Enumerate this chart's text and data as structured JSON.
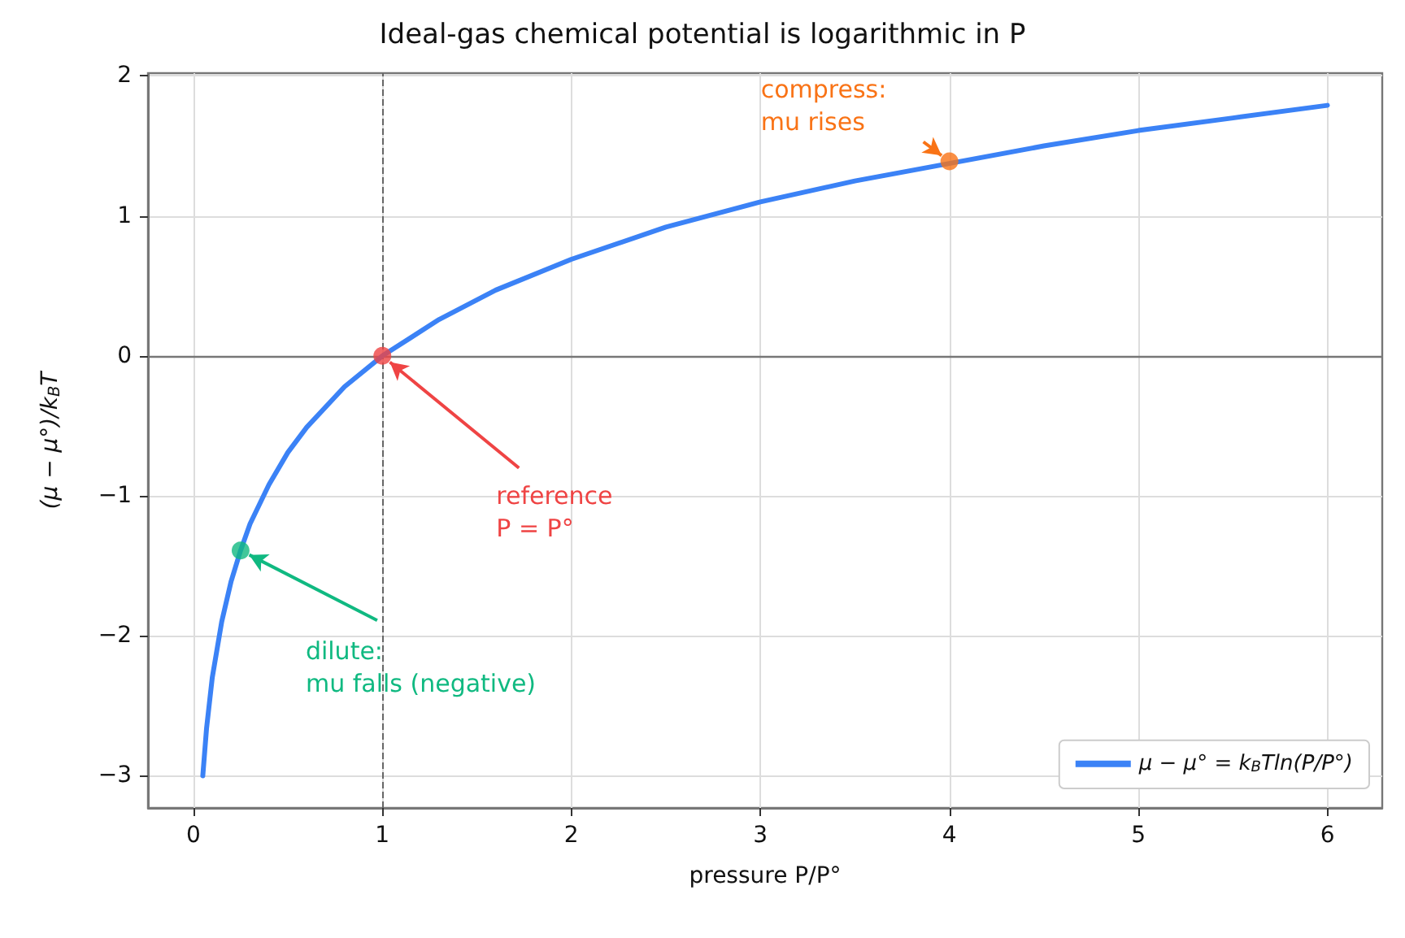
{
  "chart_data": {
    "type": "line",
    "title": "Ideal-gas chemical potential is logarithmic in P",
    "xlabel": "pressure P/P°",
    "ylabel": "(μ − μ°)/k$_{B}$T",
    "xlim": [
      -0.24,
      6.29
    ],
    "ylim": [
      -3.23,
      2.02
    ],
    "xticks": [
      0,
      1,
      2,
      3,
      4,
      5,
      6
    ],
    "yticks": [
      -3,
      -2,
      -1,
      0,
      1,
      2
    ],
    "grid": true,
    "legend": "bottom right",
    "line_style": "solid",
    "series": [
      {
        "name": "μ − μ° = k$_{B}$Tln(P/P°)",
        "color": "#3b82f6",
        "marker": "none",
        "x": [
          0.05,
          0.07,
          0.1,
          0.15,
          0.2,
          0.25,
          0.3,
          0.4,
          0.5,
          0.6,
          0.8,
          1,
          1.3,
          1.6,
          2,
          2.5,
          3,
          3.5,
          4.5,
          5,
          5.5,
          6
        ],
        "values": [
          -3.0,
          -2.66,
          -2.3,
          -1.9,
          -1.61,
          -1.39,
          -1.2,
          -0.92,
          -0.69,
          -0.51,
          -0.22,
          0,
          0.26,
          0.47,
          0.69,
          0.92,
          1.1,
          1.25,
          1.5,
          1.61,
          1.7,
          1.79
        ]
      },
      {
        "type": "scatter",
        "marker": "circle",
        "x": [
          1,
          0.25,
          4
        ],
        "values": [
          0,
          -1.39,
          1.39
        ],
        "colors": [
          "#ef4444",
          "#10b981",
          "#f97316"
        ]
      }
    ],
    "ref_lines": [
      {
        "axis": "x",
        "value": 1,
        "color": "#666666",
        "line_style": "dashed"
      },
      {
        "axis": "y",
        "value": 0,
        "color": "#777777",
        "line_style": "solid"
      }
    ],
    "annotations": [
      {
        "text": "reference\nP = P°",
        "x": 1,
        "y": 0
      },
      {
        "text": "dilute:\nmu falls (negative)",
        "x": 0.25,
        "y": -1.39
      },
      {
        "text": "compress:\nmu rises",
        "x": 4,
        "y": 1.39
      }
    ]
  }
}
